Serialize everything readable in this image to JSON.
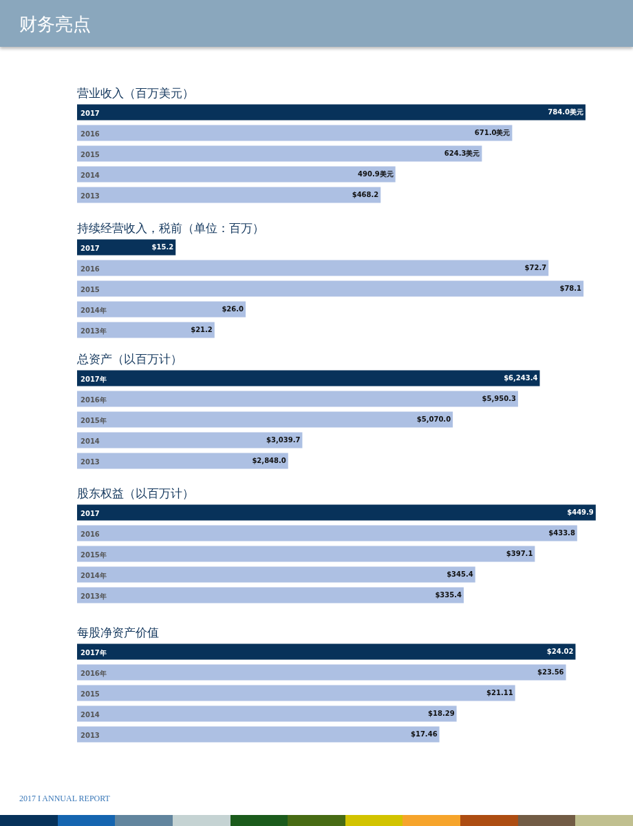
{
  "chart_data": [
    {
      "type": "bar",
      "orientation": "horizontal",
      "title": "营业收入（百万美元）",
      "tick_labels": "y",
      "annotations": [
        "财务亮点"
      ],
      "categories": [
        "2017",
        "2016",
        "2015",
        "2014",
        "2013"
      ],
      "values": [
        784.0,
        671.0,
        624.3,
        490.9,
        468.2
      ],
      "value_labels": [
        "784.0美元",
        "671.0美元",
        "624.3美元",
        "490.9美元",
        "$468.2"
      ],
      "colors": [
        "#08325a",
        "#adc0e3",
        "#adc0e3",
        "#adc0e3",
        "#adc0e3"
      ]
    },
    {
      "type": "bar",
      "orientation": "horizontal",
      "title": "持续经营收入，税前（单位：百万）",
      "tick_labels": "y",
      "categories": [
        "2017",
        "2016",
        "2015",
        "2014年",
        "2013年"
      ],
      "values": [
        15.2,
        72.7,
        78.1,
        26.0,
        21.2
      ],
      "value_labels": [
        "$15.2",
        "$72.7",
        "$78.1",
        "$26.0",
        "$21.2"
      ],
      "colors": [
        "#08325a",
        "#adc0e3",
        "#adc0e3",
        "#adc0e3",
        "#adc0e3"
      ]
    },
    {
      "type": "bar",
      "orientation": "horizontal",
      "title": "总资产（以百万计）",
      "tick_labels": "y",
      "categories": [
        "2017年",
        "2016年",
        "2015年",
        "2014",
        "2013"
      ],
      "values": [
        6243.4,
        5950.3,
        5070.0,
        3039.7,
        2848.0
      ],
      "value_labels": [
        "$6,243.4",
        "$5,950.3",
        "$5,070.0",
        "$3,039.7",
        "$2,848.0"
      ],
      "colors": [
        "#08325a",
        "#adc0e3",
        "#adc0e3",
        "#adc0e3",
        "#adc0e3"
      ]
    },
    {
      "type": "bar",
      "orientation": "horizontal",
      "title": "股东权益（以百万计）",
      "tick_labels": "y",
      "categories": [
        "2017",
        "2016",
        "2015年",
        "2014年",
        "2013年"
      ],
      "values": [
        449.9,
        433.8,
        397.1,
        345.4,
        335.4
      ],
      "value_labels": [
        "$449.9",
        "$433.8",
        "$397.1",
        "$345.4",
        "$335.4"
      ],
      "colors": [
        "#08325a",
        "#adc0e3",
        "#adc0e3",
        "#adc0e3",
        "#adc0e3"
      ]
    },
    {
      "type": "bar",
      "orientation": "horizontal",
      "title": "每股净资产价值",
      "tick_labels": "y",
      "annotations": [
        "2017 I ANNUAL REPORT"
      ],
      "categories": [
        "2017年",
        "2016年",
        "2015",
        "2014",
        "2013"
      ],
      "values": [
        24.02,
        23.56,
        21.11,
        18.29,
        17.46
      ],
      "value_labels": [
        "$24.02",
        "$23.56",
        "$21.11",
        "$18.29",
        "$17.46"
      ],
      "colors": [
        "#08325a",
        "#adc0e3",
        "#adc0e3",
        "#adc0e3",
        "#adc0e3"
      ]
    }
  ]
}
